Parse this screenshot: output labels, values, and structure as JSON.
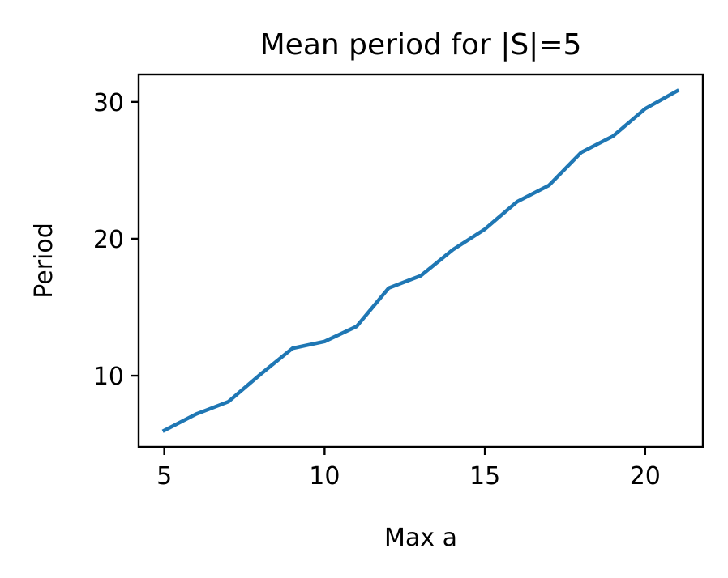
{
  "chart_data": {
    "type": "line",
    "title": "Mean period for |S|=5",
    "xlabel": "Max a",
    "ylabel": "Period",
    "xlim": [
      4.2,
      21.8
    ],
    "ylim": [
      4.8,
      32.0
    ],
    "xticks": [
      5,
      10,
      15,
      20
    ],
    "yticks": [
      10,
      20,
      30
    ],
    "grid": false,
    "series": [
      {
        "color": "#1f77b4",
        "x": [
          5,
          6,
          7,
          8,
          9,
          10,
          11,
          12,
          13,
          14,
          15,
          16,
          17,
          18,
          19,
          20,
          21
        ],
        "y": [
          6.0,
          7.2,
          8.1,
          10.1,
          12.0,
          12.5,
          13.6,
          16.4,
          17.3,
          19.2,
          20.7,
          22.7,
          23.9,
          26.3,
          27.5,
          29.5,
          30.8
        ]
      }
    ]
  }
}
